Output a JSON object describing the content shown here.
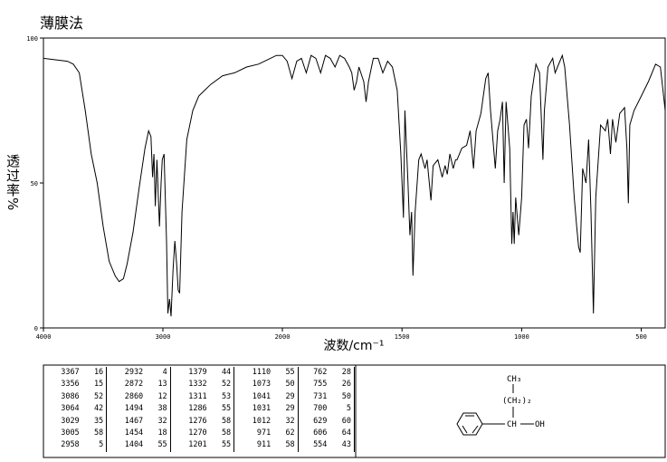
{
  "chart_data": {
    "type": "line",
    "title": "薄膜法",
    "x_label": "波数/cm⁻¹",
    "y_label": "透过率%",
    "xlim": [
      4000,
      400
    ],
    "x_break": 2000,
    "xticks": [
      4000,
      3000,
      2000,
      1500,
      1000,
      500
    ],
    "ylim": [
      0,
      100
    ],
    "yticks": [
      0,
      50,
      100
    ],
    "color": "#000000",
    "x": [
      4000,
      3900,
      3800,
      3750,
      3700,
      3650,
      3600,
      3550,
      3500,
      3450,
      3400,
      3367,
      3330,
      3300,
      3250,
      3200,
      3150,
      3120,
      3100,
      3086,
      3075,
      3064,
      3050,
      3029,
      3015,
      3005,
      2990,
      2970,
      2958,
      2945,
      2932,
      2915,
      2900,
      2885,
      2872,
      2860,
      2840,
      2800,
      2750,
      2700,
      2650,
      2600,
      2500,
      2400,
      2300,
      2200,
      2100,
      2050,
      2000,
      1980,
      1960,
      1940,
      1920,
      1900,
      1880,
      1860,
      1840,
      1820,
      1800,
      1780,
      1760,
      1740,
      1720,
      1710,
      1700,
      1690,
      1680,
      1660,
      1650,
      1640,
      1620,
      1600,
      1580,
      1560,
      1540,
      1520,
      1505,
      1494,
      1488,
      1475,
      1467,
      1460,
      1454,
      1445,
      1430,
      1420,
      1404,
      1395,
      1379,
      1370,
      1350,
      1332,
      1320,
      1311,
      1300,
      1286,
      1276,
      1270,
      1250,
      1230,
      1215,
      1201,
      1190,
      1170,
      1150,
      1140,
      1130,
      1110,
      1100,
      1090,
      1080,
      1073,
      1065,
      1050,
      1041,
      1036,
      1031,
      1025,
      1012,
      1000,
      990,
      980,
      971,
      960,
      940,
      925,
      911,
      905,
      890,
      870,
      860,
      850,
      830,
      820,
      800,
      780,
      770,
      762,
      755,
      745,
      731,
      720,
      710,
      700,
      690,
      670,
      650,
      640,
      629,
      620,
      606,
      590,
      570,
      560,
      554,
      548,
      530,
      500,
      470,
      440,
      420,
      400
    ],
    "values": [
      93,
      92.5,
      92,
      91,
      88,
      75,
      60,
      50,
      35,
      23,
      18,
      16,
      17,
      22,
      33,
      48,
      62,
      68,
      66,
      52,
      60,
      42,
      58,
      35,
      50,
      58,
      60,
      30,
      5,
      10,
      4,
      20,
      30,
      22,
      13,
      12,
      40,
      65,
      75,
      80,
      82,
      84,
      87,
      88,
      90,
      91,
      93,
      94,
      94,
      92,
      86,
      92,
      93,
      88,
      94,
      93,
      88,
      94,
      93,
      90,
      94,
      93,
      90,
      88,
      82,
      85,
      90,
      85,
      78,
      85,
      93,
      93,
      88,
      92,
      90,
      82,
      60,
      38,
      75,
      50,
      32,
      40,
      18,
      40,
      58,
      60,
      55,
      58,
      44,
      56,
      58,
      52,
      56,
      53,
      60,
      55,
      58,
      58,
      62,
      63,
      68,
      55,
      68,
      74,
      86,
      88,
      75,
      55,
      68,
      72,
      78,
      50,
      78,
      62,
      29,
      40,
      29,
      45,
      32,
      45,
      70,
      72,
      62,
      80,
      91,
      88,
      58,
      75,
      90,
      93,
      88,
      90,
      94,
      90,
      70,
      45,
      35,
      28,
      26,
      55,
      50,
      65,
      40,
      5,
      45,
      70,
      68,
      72,
      60,
      72,
      64,
      74,
      76,
      62,
      43,
      70,
      75,
      80,
      85,
      91,
      90,
      75
    ]
  },
  "peak_table": {
    "rows": [
      [
        3367,
        16,
        2932,
        4,
        1379,
        44,
        1110,
        55,
        762,
        28
      ],
      [
        3356,
        15,
        2872,
        13,
        1332,
        52,
        1073,
        50,
        755,
        26
      ],
      [
        3086,
        52,
        2860,
        12,
        1311,
        53,
        1041,
        29,
        731,
        50
      ],
      [
        3064,
        42,
        1494,
        38,
        1286,
        55,
        1031,
        29,
        700,
        5
      ],
      [
        3029,
        35,
        1467,
        32,
        1276,
        58,
        1012,
        32,
        629,
        60
      ],
      [
        3005,
        58,
        1454,
        18,
        1270,
        58,
        971,
        62,
        606,
        64
      ],
      [
        2958,
        5,
        1404,
        55,
        1201,
        55,
        911,
        58,
        554,
        43
      ]
    ]
  },
  "structure": {
    "top": "CH₃",
    "chain": "(CH₂)₂",
    "center": "CH",
    "group": "OH"
  }
}
